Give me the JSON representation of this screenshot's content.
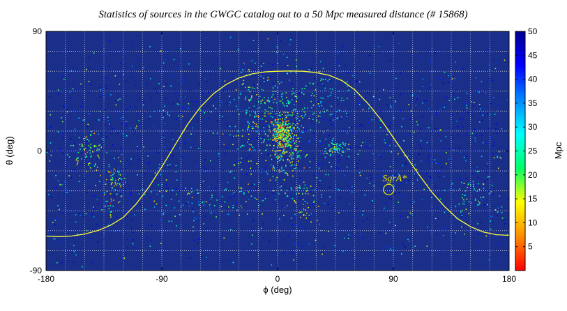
{
  "chart_data": {
    "type": "heatmap",
    "title": "Statistics of sources in the GWGC catalog out to a 50 Mpc measured distance (# 15868)",
    "xlabel": "ϕ (deg)",
    "ylabel": "θ (deg)",
    "xlim": [
      -180,
      180
    ],
    "ylim": [
      -90,
      90
    ],
    "xticks": [
      -180,
      -90,
      0,
      90,
      180
    ],
    "yticks": [
      -90,
      0,
      90
    ],
    "grid": true,
    "grid_step_x": 15,
    "grid_step_y": 15,
    "background_color": "#1a2f8a",
    "colorbar": {
      "label": "Mpc",
      "min": 0,
      "max": 50,
      "ticks": [
        5,
        10,
        15,
        20,
        25,
        30,
        35,
        40,
        45,
        50
      ],
      "colors": [
        "#ff0000",
        "#ff8c00",
        "#ffff00",
        "#00ff66",
        "#00ffff",
        "#0088ff",
        "#0000ff",
        "#00008f"
      ]
    },
    "galactic_plane": {
      "color": "#ffff33",
      "points": [
        [
          -180,
          -64
        ],
        [
          -170,
          -64.5
        ],
        [
          -160,
          -64
        ],
        [
          -150,
          -62.5
        ],
        [
          -140,
          -60
        ],
        [
          -130,
          -56
        ],
        [
          -120,
          -50
        ],
        [
          -110,
          -40
        ],
        [
          -100,
          -27
        ],
        [
          -90,
          -12
        ],
        [
          -80,
          4
        ],
        [
          -70,
          20
        ],
        [
          -60,
          33
        ],
        [
          -50,
          43
        ],
        [
          -40,
          50
        ],
        [
          -30,
          55
        ],
        [
          -20,
          58
        ],
        [
          -10,
          59.5
        ],
        [
          0,
          60
        ],
        [
          10,
          60.2
        ],
        [
          20,
          60
        ],
        [
          30,
          59
        ],
        [
          40,
          57
        ],
        [
          50,
          53
        ],
        [
          60,
          46
        ],
        [
          70,
          36
        ],
        [
          80,
          24
        ],
        [
          90,
          10
        ],
        [
          100,
          -4
        ],
        [
          110,
          -18
        ],
        [
          120,
          -31
        ],
        [
          130,
          -42
        ],
        [
          140,
          -51
        ],
        [
          150,
          -57
        ],
        [
          160,
          -61
        ],
        [
          170,
          -63
        ],
        [
          180,
          -63.5
        ]
      ]
    },
    "annotations": [
      {
        "label": "SgrA*",
        "x": 86.4,
        "y": -29
      }
    ],
    "sources_total": 15868,
    "source_clusters": [
      {
        "x": 4,
        "y": 12,
        "spread_x": 4,
        "spread_y": 6,
        "count": 220,
        "distance": 15
      },
      {
        "x": 6,
        "y": 5,
        "spread_x": 6,
        "spread_y": 12,
        "count": 160,
        "distance": 18
      },
      {
        "x": 2,
        "y": 25,
        "spread_x": 14,
        "spread_y": 20,
        "count": 140,
        "distance": 22
      },
      {
        "x": 45,
        "y": 2,
        "spread_x": 4,
        "spread_y": 3,
        "count": 70,
        "distance": 25
      },
      {
        "x": -20,
        "y": 10,
        "spread_x": 12,
        "spread_y": 25,
        "count": 110,
        "distance": 20
      },
      {
        "x": -145,
        "y": 0,
        "spread_x": 6,
        "spread_y": 8,
        "count": 60,
        "distance": 18
      },
      {
        "x": -128,
        "y": -25,
        "spread_x": 5,
        "spread_y": 12,
        "count": 70,
        "distance": 16
      },
      {
        "x": 20,
        "y": -35,
        "spread_x": 8,
        "spread_y": 10,
        "count": 60,
        "distance": 18
      },
      {
        "x": 10,
        "y": 40,
        "spread_x": 20,
        "spread_y": 14,
        "count": 90,
        "distance": 24
      },
      {
        "x": 150,
        "y": -35,
        "spread_x": 10,
        "spread_y": 10,
        "count": 50,
        "distance": 24
      },
      {
        "x": -60,
        "y": -35,
        "spread_x": 20,
        "spread_y": 8,
        "count": 60,
        "distance": 24
      },
      {
        "x": 40,
        "y": 40,
        "spread_x": 10,
        "spread_y": 8,
        "count": 40,
        "distance": 30
      }
    ]
  }
}
